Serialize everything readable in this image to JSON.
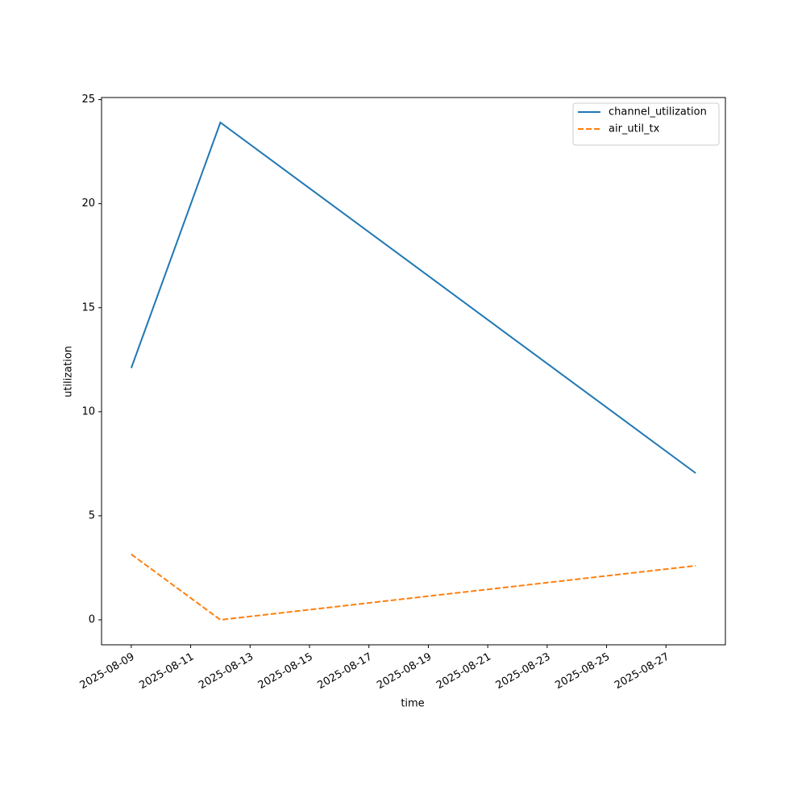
{
  "chart_data": {
    "type": "line",
    "x": [
      "2025-08-09",
      "2025-08-12",
      "2025-08-28"
    ],
    "series": [
      {
        "name": "channel_utilization",
        "color": "#1f77b4",
        "dash": "solid",
        "values": [
          12.1,
          23.9,
          7.05
        ]
      },
      {
        "name": "air_util_tx",
        "color": "#ff7f0e",
        "dash": "dashed",
        "values": [
          3.15,
          0.0,
          2.6
        ]
      }
    ],
    "xlabel": "time",
    "ylabel": "utilization",
    "xlim": [
      "2025-08-08",
      "2025-08-29"
    ],
    "xticks": [
      "2025-08-09",
      "2025-08-11",
      "2025-08-13",
      "2025-08-15",
      "2025-08-17",
      "2025-08-19",
      "2025-08-21",
      "2025-08-23",
      "2025-08-25",
      "2025-08-27"
    ],
    "ylim": [
      -1.2,
      25.1
    ],
    "yticks": [
      0,
      5,
      10,
      15,
      20,
      25
    ],
    "grid": false,
    "legend": "upper right"
  }
}
